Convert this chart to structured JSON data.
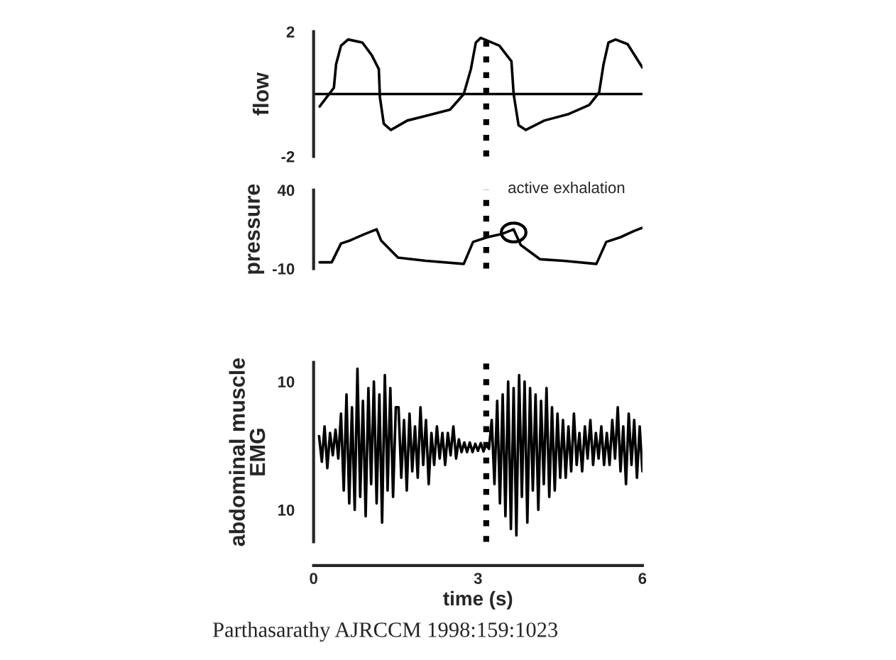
{
  "chart_data": [
    {
      "type": "line",
      "ylabel": "flow",
      "xlim": [
        0,
        6
      ],
      "ylim": [
        -2,
        2
      ],
      "yticks": [
        -2,
        2
      ],
      "tick_labels": "y",
      "grid": false,
      "legend": false,
      "series": [
        {
          "color": "#000000",
          "x": [
            0.11,
            0.24,
            0.37,
            0.41,
            0.5,
            0.63,
            0.89,
            1.06,
            1.19,
            1.21,
            1.28,
            1.41,
            1.71,
            2.05,
            2.49,
            2.74,
            2.87,
            2.96,
            3.05,
            3.39,
            3.61,
            3.65,
            3.74,
            3.87,
            4.21,
            4.64,
            5.03,
            5.21,
            5.29,
            5.38,
            5.51,
            5.73,
            6.0
          ],
          "values": [
            -0.4,
            -0.1,
            0.2,
            0.95,
            1.55,
            1.75,
            1.65,
            1.25,
            0.8,
            -0.1,
            -0.95,
            -1.15,
            -0.85,
            -0.7,
            -0.5,
            0.0,
            0.8,
            1.65,
            1.8,
            1.55,
            1.05,
            0.0,
            -1.0,
            -1.15,
            -0.85,
            -0.65,
            -0.35,
            0.05,
            0.95,
            1.65,
            1.75,
            1.6,
            0.85
          ]
        }
      ],
      "ref_lines": [
        {
          "axis": "y",
          "value": 0,
          "color": "#000000",
          "line_style": "solid"
        },
        {
          "axis": "x",
          "value": 3.15,
          "color": "#000000",
          "line_style": "dotted"
        }
      ]
    },
    {
      "type": "line",
      "ylabel": "pressure",
      "xlim": [
        0,
        6
      ],
      "ylim": [
        -10,
        40
      ],
      "yticks": [
        -10,
        40
      ],
      "tick_labels": "y",
      "grid": false,
      "legend": false,
      "series": [
        {
          "color": "#000000",
          "x": [
            0.11,
            0.33,
            0.5,
            0.67,
            0.93,
            1.15,
            1.23,
            1.54,
            2.05,
            2.74,
            2.91,
            3.17,
            3.43,
            3.65,
            3.78,
            4.13,
            4.56,
            5.16,
            5.34,
            5.6,
            5.85,
            6.0
          ],
          "values": [
            -6,
            -6,
            6,
            8,
            12,
            15,
            8,
            -3,
            -5,
            -7,
            7,
            10,
            12,
            15,
            5,
            -4,
            -5,
            -7,
            7,
            10,
            14,
            16
          ]
        }
      ],
      "annotations": [
        {
          "text": "active exhalation",
          "x": 3.65,
          "y": 13
        }
      ],
      "ref_lines": [
        {
          "axis": "x",
          "value": 3.15,
          "color": "#000000",
          "line_style": "dotted"
        }
      ]
    },
    {
      "type": "line",
      "ylabel": "abdominal muscle\nEMG",
      "xlabel": "time (s)",
      "xlim": [
        0,
        6
      ],
      "ylim": [
        -15,
        13
      ],
      "yticks": [
        {
          "value": -10,
          "label": "10"
        },
        10
      ],
      "xticks": [
        0,
        3,
        6
      ],
      "grid": false,
      "legend": false,
      "series": [
        {
          "color": "#000000",
          "x": [
            0.1,
            0.15,
            0.2,
            0.25,
            0.3,
            0.35,
            0.4,
            0.45,
            0.5,
            0.55,
            0.6,
            0.65,
            0.7,
            0.75,
            0.8,
            0.85,
            0.9,
            0.95,
            1.0,
            1.05,
            1.1,
            1.15,
            1.2,
            1.25,
            1.3,
            1.35,
            1.4,
            1.45,
            1.5,
            1.55,
            1.6,
            1.65,
            1.7,
            1.75,
            1.8,
            1.85,
            1.9,
            1.95,
            2.0,
            2.05,
            2.1,
            2.15,
            2.2,
            2.25,
            2.3,
            2.35,
            2.4,
            2.45,
            2.5,
            2.55,
            2.6,
            2.65,
            2.7,
            2.75,
            2.8,
            2.85,
            2.9,
            2.95,
            3.0,
            3.05,
            3.1,
            3.15,
            3.2,
            3.25,
            3.3,
            3.35,
            3.4,
            3.45,
            3.5,
            3.55,
            3.6,
            3.65,
            3.7,
            3.75,
            3.8,
            3.85,
            3.9,
            3.95,
            4.0,
            4.05,
            4.1,
            4.15,
            4.2,
            4.25,
            4.3,
            4.35,
            4.4,
            4.45,
            4.5,
            4.55,
            4.6,
            4.65,
            4.7,
            4.75,
            4.8,
            4.85,
            4.9,
            4.95,
            5.0,
            5.05,
            5.1,
            5.15,
            5.2,
            5.25,
            5.3,
            5.35,
            5.4,
            5.45,
            5.5,
            5.55,
            5.6,
            5.65,
            5.7,
            5.75,
            5.8,
            5.85,
            5.9,
            5.95,
            6.0
          ],
          "values": [
            1.5,
            -2.5,
            3,
            -3.5,
            2,
            -1.5,
            2.5,
            -2,
            5,
            -7,
            8,
            -9,
            6,
            -10,
            12,
            -8,
            7,
            -11,
            9,
            -6,
            10,
            -9,
            8,
            -12,
            11,
            -7,
            9,
            -8,
            6,
            6,
            -5,
            4,
            -7,
            5,
            -4,
            3,
            -5,
            6,
            -3,
            4,
            -6,
            2,
            -3,
            3,
            -2,
            2,
            -3,
            2,
            -1.5,
            3,
            -2,
            1,
            -1,
            0.5,
            -1,
            0.5,
            -1,
            0.3,
            -0.8,
            0.4,
            -0.9,
            0.2,
            -0.5,
            4,
            -6,
            7,
            -9,
            8,
            -11,
            10,
            -13,
            9,
            -14,
            11,
            -8,
            10,
            -12,
            9,
            -7,
            8,
            -10,
            7,
            -6,
            9,
            -8,
            6,
            -7,
            5,
            -5,
            4,
            -5,
            3,
            -4,
            5,
            -3,
            2,
            -4,
            3,
            -2,
            4,
            -3,
            2,
            -2,
            3,
            -3,
            2,
            -3,
            4,
            -2,
            6,
            -4,
            3,
            -6,
            5,
            -3,
            4,
            -5,
            3,
            -4
          ]
        }
      ],
      "annotations": [
        "Parthasarathy AJRCCM 1998:159:1023"
      ],
      "ref_lines": [
        {
          "axis": "x",
          "value": 3.15,
          "color": "#000000",
          "line_style": "dotted"
        }
      ]
    }
  ]
}
